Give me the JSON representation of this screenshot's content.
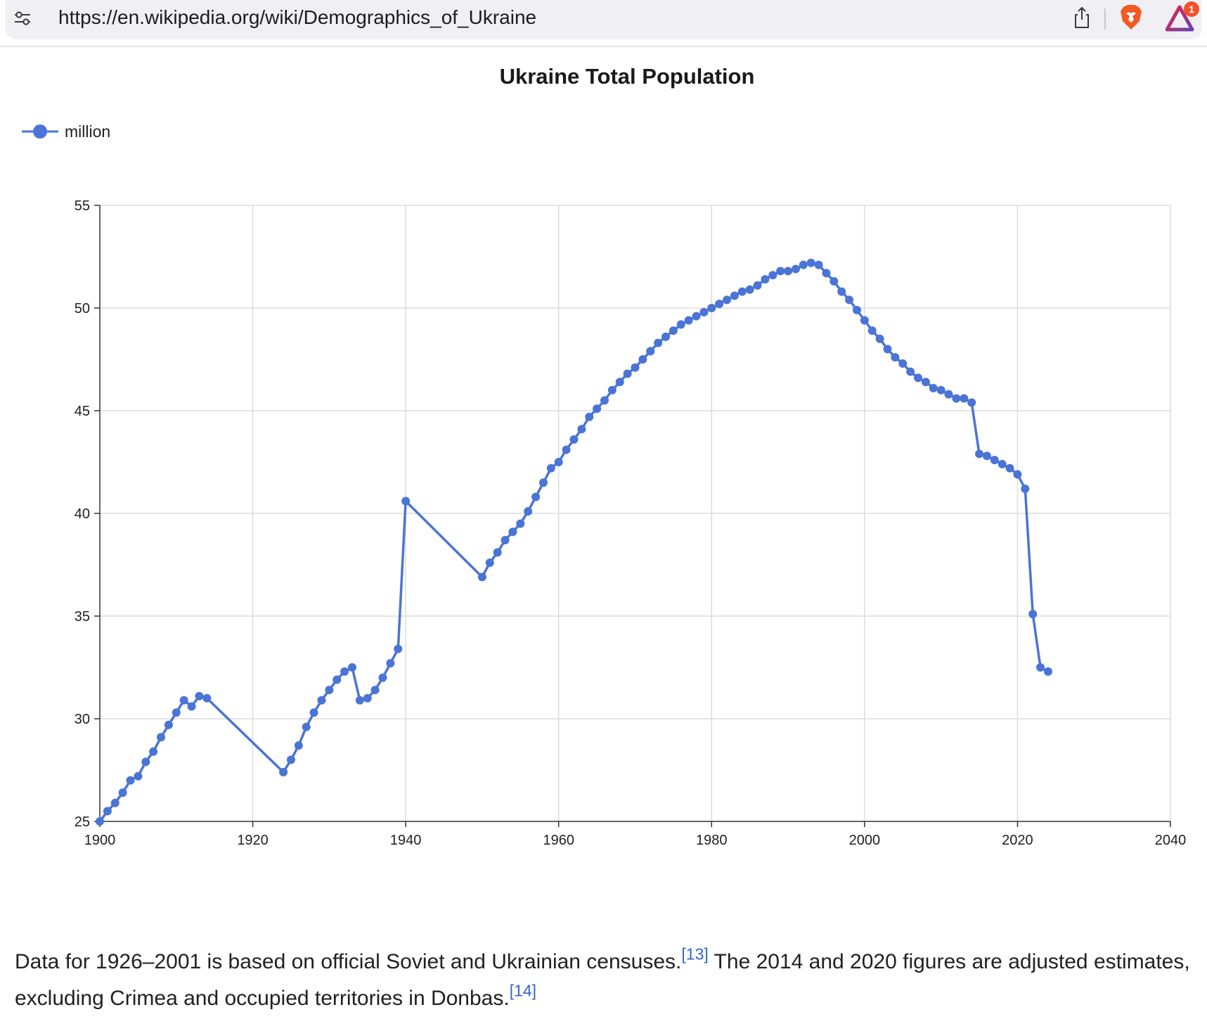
{
  "browser": {
    "url": "https://en.wikipedia.org/wiki/Demographics_of_Ukraine",
    "rewards_badge_count": "1",
    "icons": [
      "tune-icon",
      "share-icon",
      "brave-lion-icon",
      "brave-rewards-icon"
    ]
  },
  "chart_data": {
    "type": "line",
    "title": "Ukraine Total Population",
    "legend_position": "top-left",
    "grid": true,
    "color": "#4a74d6",
    "xlim": [
      1900,
      2040
    ],
    "ylim": [
      25,
      55
    ],
    "x_ticks": [
      "1900",
      "1920",
      "1940",
      "1960",
      "1980",
      "2000",
      "2020",
      "2040"
    ],
    "y_ticks": [
      "25",
      "30",
      "35",
      "40",
      "45",
      "50",
      "55"
    ],
    "series": [
      {
        "name": "million",
        "points": [
          [
            1900,
            25.0
          ],
          [
            1901,
            25.5
          ],
          [
            1902,
            25.9
          ],
          [
            1903,
            26.4
          ],
          [
            1904,
            27.0
          ],
          [
            1905,
            27.2
          ],
          [
            1906,
            27.9
          ],
          [
            1907,
            28.4
          ],
          [
            1908,
            29.1
          ],
          [
            1909,
            29.7
          ],
          [
            1910,
            30.3
          ],
          [
            1911,
            30.9
          ],
          [
            1912,
            30.6
          ],
          [
            1913,
            31.1
          ],
          [
            1914,
            31.0
          ],
          [
            1924,
            27.4
          ],
          [
            1925,
            28.0
          ],
          [
            1926,
            28.7
          ],
          [
            1927,
            29.6
          ],
          [
            1928,
            30.3
          ],
          [
            1929,
            30.9
          ],
          [
            1930,
            31.4
          ],
          [
            1931,
            31.9
          ],
          [
            1932,
            32.3
          ],
          [
            1933,
            32.5
          ],
          [
            1934,
            30.9
          ],
          [
            1935,
            31.0
          ],
          [
            1936,
            31.4
          ],
          [
            1937,
            32.0
          ],
          [
            1938,
            32.7
          ],
          [
            1939,
            33.4
          ],
          [
            1940,
            40.6
          ],
          [
            1950,
            36.9
          ],
          [
            1951,
            37.6
          ],
          [
            1952,
            38.1
          ],
          [
            1953,
            38.7
          ],
          [
            1954,
            39.1
          ],
          [
            1955,
            39.5
          ],
          [
            1956,
            40.1
          ],
          [
            1957,
            40.8
          ],
          [
            1958,
            41.5
          ],
          [
            1959,
            42.2
          ],
          [
            1960,
            42.5
          ],
          [
            1961,
            43.1
          ],
          [
            1962,
            43.6
          ],
          [
            1963,
            44.1
          ],
          [
            1964,
            44.7
          ],
          [
            1965,
            45.1
          ],
          [
            1966,
            45.5
          ],
          [
            1967,
            46.0
          ],
          [
            1968,
            46.4
          ],
          [
            1969,
            46.8
          ],
          [
            1970,
            47.1
          ],
          [
            1971,
            47.5
          ],
          [
            1972,
            47.9
          ],
          [
            1973,
            48.3
          ],
          [
            1974,
            48.6
          ],
          [
            1975,
            48.9
          ],
          [
            1976,
            49.2
          ],
          [
            1977,
            49.4
          ],
          [
            1978,
            49.6
          ],
          [
            1979,
            49.8
          ],
          [
            1980,
            50.0
          ],
          [
            1981,
            50.2
          ],
          [
            1982,
            50.4
          ],
          [
            1983,
            50.6
          ],
          [
            1984,
            50.8
          ],
          [
            1985,
            50.9
          ],
          [
            1986,
            51.1
          ],
          [
            1987,
            51.4
          ],
          [
            1988,
            51.6
          ],
          [
            1989,
            51.8
          ],
          [
            1990,
            51.8
          ],
          [
            1991,
            51.9
          ],
          [
            1992,
            52.1
          ],
          [
            1993,
            52.2
          ],
          [
            1994,
            52.1
          ],
          [
            1995,
            51.7
          ],
          [
            1996,
            51.3
          ],
          [
            1997,
            50.8
          ],
          [
            1998,
            50.4
          ],
          [
            1999,
            49.9
          ],
          [
            2000,
            49.4
          ],
          [
            2001,
            48.9
          ],
          [
            2002,
            48.5
          ],
          [
            2003,
            48.0
          ],
          [
            2004,
            47.6
          ],
          [
            2005,
            47.3
          ],
          [
            2006,
            46.9
          ],
          [
            2007,
            46.6
          ],
          [
            2008,
            46.4
          ],
          [
            2009,
            46.1
          ],
          [
            2010,
            46.0
          ],
          [
            2011,
            45.8
          ],
          [
            2012,
            45.6
          ],
          [
            2013,
            45.6
          ],
          [
            2014,
            45.4
          ],
          [
            2015,
            42.9
          ],
          [
            2016,
            42.8
          ],
          [
            2017,
            42.6
          ],
          [
            2018,
            42.4
          ],
          [
            2019,
            42.2
          ],
          [
            2020,
            41.9
          ],
          [
            2021,
            41.2
          ],
          [
            2022,
            35.1
          ],
          [
            2023,
            32.5
          ],
          [
            2024,
            32.3
          ]
        ]
      }
    ]
  },
  "caption": {
    "text1": "Data for 1926–2001 is based on official Soviet and Ukrainian censuses.",
    "ref1": "[13]",
    "text2": " The 2014 and 2020 figures are adjusted estimates, excluding Crimea and occupied territories in Donbas.",
    "ref2": "[14]"
  }
}
